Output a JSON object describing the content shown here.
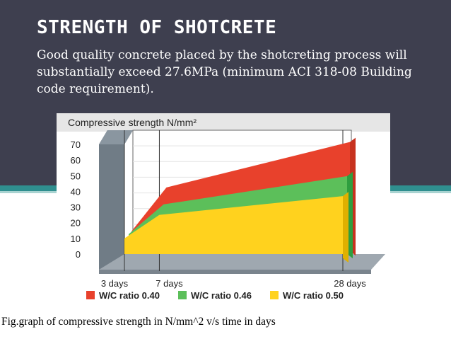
{
  "slide": {
    "title": "STRENGTH OF SHOTCRETE",
    "subtitle": "Good quality concrete placed by the shotcreting process will substantially exceed 27.6MPa (minimum ACI 318-08 Building code requirement).",
    "caption": "Fig.graph of compressive strength in N/mm^2 v/s time in days"
  },
  "chart_data": {
    "type": "area",
    "ylabel": "Compressive strength N/mm²",
    "xlabel": "",
    "ylim": [
      0,
      70
    ],
    "yticks": [
      0,
      10,
      20,
      30,
      40,
      50,
      60,
      70
    ],
    "xticks": [
      {
        "x": 3,
        "label": "3 days"
      },
      {
        "x": 7,
        "label": "7 days"
      },
      {
        "x": 28,
        "label": "28 days"
      }
    ],
    "x": [
      3,
      7,
      28
    ],
    "series": [
      {
        "name": "W/C ratio 0.40",
        "color": "#e8412c",
        "values": [
          10,
          38,
          67
        ]
      },
      {
        "name": "W/C ratio 0.46",
        "color": "#5cbf5a",
        "values": [
          10,
          29,
          47
        ]
      },
      {
        "name": "W/C ratio 0.50",
        "color": "#ffd21e",
        "values": [
          10,
          25,
          37
        ]
      }
    ],
    "legend_position": "bottom",
    "grid": true
  }
}
